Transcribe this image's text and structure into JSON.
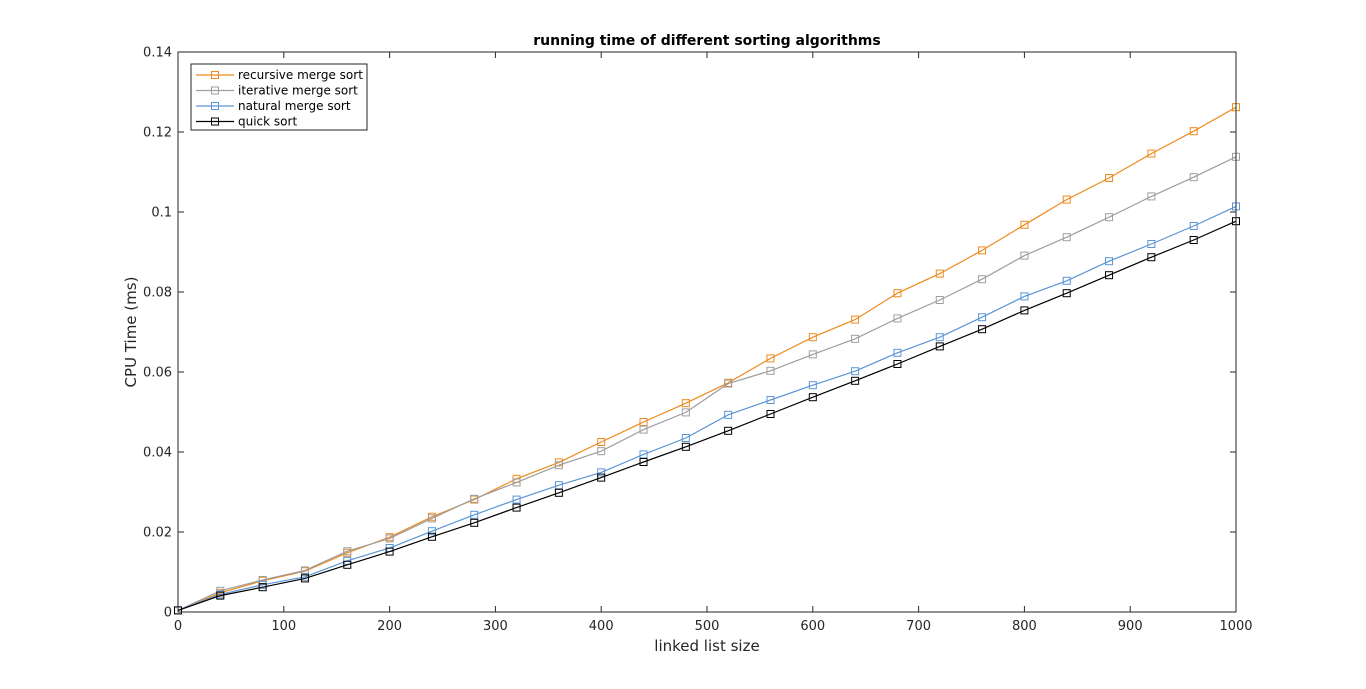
{
  "chart_data": {
    "type": "line",
    "title": "running time of different sorting algorithms",
    "xlabel": "linked list size",
    "ylabel": "CPU Time (ms)",
    "xlim": [
      0,
      1000
    ],
    "ylim": [
      0,
      0.14
    ],
    "xticks": [
      0,
      100,
      200,
      300,
      400,
      500,
      600,
      700,
      800,
      900,
      1000
    ],
    "xtick_labels": [
      "0",
      "100",
      "200",
      "300",
      "400",
      "500",
      "600",
      "700",
      "800",
      "900",
      "1000"
    ],
    "yticks": [
      0,
      0.02,
      0.04,
      0.06,
      0.08,
      0.1,
      0.12,
      0.14
    ],
    "ytick_labels": [
      "0",
      "0.02",
      "0.04",
      "0.06",
      "0.08",
      "0.1",
      "0.12",
      "0.14"
    ],
    "grid": false,
    "legend_position": "top-left",
    "marker": "square",
    "x": [
      0,
      40,
      80,
      120,
      160,
      200,
      240,
      280,
      320,
      360,
      400,
      440,
      480,
      520,
      560,
      600,
      640,
      680,
      720,
      760,
      800,
      840,
      880,
      920,
      960,
      1000
    ],
    "series": [
      {
        "name": "recursive merge sort",
        "color": "#EE8A1E",
        "values": [
          0.0004,
          0.0048,
          0.0078,
          0.0102,
          0.0148,
          0.0187,
          0.0238,
          0.0281,
          0.0333,
          0.0374,
          0.0425,
          0.0475,
          0.0522,
          0.0573,
          0.0634,
          0.0687,
          0.0731,
          0.0797,
          0.0846,
          0.0904,
          0.0968,
          0.1031,
          0.1085,
          0.1146,
          0.1202,
          0.1262
        ]
      },
      {
        "name": "iterative merge sort",
        "color": "#9E9E9E",
        "values": [
          0.0004,
          0.0053,
          0.008,
          0.0104,
          0.0152,
          0.0184,
          0.0234,
          0.0283,
          0.0324,
          0.0367,
          0.0402,
          0.0456,
          0.0499,
          0.0571,
          0.0603,
          0.0644,
          0.0683,
          0.0734,
          0.078,
          0.0832,
          0.0891,
          0.0937,
          0.0987,
          0.1039,
          0.1087,
          0.1138
        ]
      },
      {
        "name": "natural merge sort",
        "color": "#5B95D6",
        "values": [
          0.0004,
          0.0044,
          0.0068,
          0.0088,
          0.0128,
          0.016,
          0.0202,
          0.0243,
          0.0281,
          0.0317,
          0.0349,
          0.0394,
          0.0435,
          0.0493,
          0.053,
          0.0567,
          0.0602,
          0.0648,
          0.0687,
          0.0737,
          0.0789,
          0.0828,
          0.0877,
          0.092,
          0.0965,
          0.1014
        ]
      },
      {
        "name": "quick sort",
        "color": "#000000",
        "values": [
          0.0004,
          0.0041,
          0.0062,
          0.0084,
          0.0118,
          0.0151,
          0.0188,
          0.0223,
          0.0261,
          0.0298,
          0.0336,
          0.0375,
          0.0413,
          0.0453,
          0.0495,
          0.0537,
          0.0578,
          0.062,
          0.0664,
          0.0707,
          0.0754,
          0.0797,
          0.0842,
          0.0887,
          0.093,
          0.0977
        ]
      }
    ]
  }
}
